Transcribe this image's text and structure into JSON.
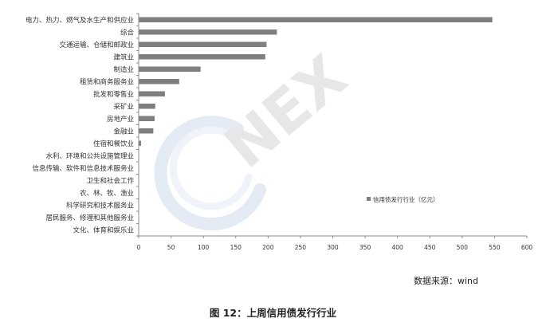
{
  "chart_data": {
    "type": "bar",
    "orientation": "horizontal",
    "categories": [
      "电力、热力、燃气及水生产和供应业",
      "综合",
      "交通运输、仓储和邮政业",
      "建筑业",
      "制造业",
      "租赁和商务服务业",
      "批发和零售业",
      "采矿业",
      "房地产业",
      "金融业",
      "住宿和餐饮业",
      "水利、环境和公共设施管理业",
      "信息传输、软件和信息技术服务业",
      "卫生和社会工作",
      "农、林、牧、渔业",
      "科学研究和技术服务业",
      "居民服务、修理和其他服务业",
      "文化、体育和娱乐业"
    ],
    "series": [
      {
        "name": "信用债发行行业（亿元）",
        "values": [
          546,
          213,
          197,
          195,
          95,
          62,
          40,
          25,
          24,
          22,
          3,
          0,
          0,
          0,
          0,
          0,
          0,
          0
        ]
      }
    ],
    "xlim": [
      0,
      600
    ],
    "xticks": [
      0,
      50,
      100,
      150,
      200,
      250,
      300,
      350,
      400,
      450,
      500,
      550,
      600
    ],
    "bar_color": "#7f7f7f",
    "grid": false,
    "legend_position": "right"
  },
  "watermark": "NEX",
  "source": "数据来源：wind",
  "caption": "图 12：上周信用债发行行业"
}
